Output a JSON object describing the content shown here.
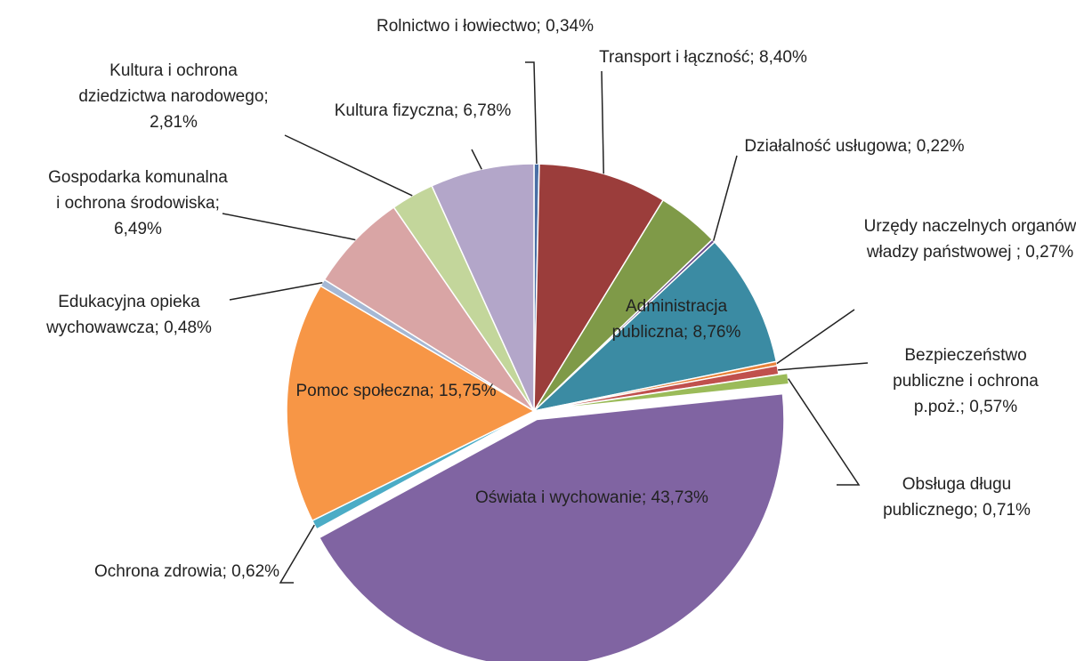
{
  "chart_data": {
    "type": "pie",
    "categories": [
      "Rolnictwo i łowiectwo;",
      "Transport i łączność;",
      null,
      "Działalność usługowa;",
      "Administracja publiczna;",
      "Urzędy naczelnych organów władzy państwowej ;",
      "Bezpieczeństwo publiczne i ochrona p.poż.;",
      "Obsługa długu publicznego;",
      "Oświata i wychowanie;",
      "Ochrona zdrowia;",
      "Pomoc społeczna;",
      "Edukacyjna opieka wychowawcza;",
      "Gospodarka komunalna i ochrona środowiska;",
      "Kultura i ochrona dziedzictwa narodowego;",
      "Kultura fizyczna;"
    ],
    "values": [
      0.34,
      8.4,
      4.07,
      0.22,
      8.76,
      0.27,
      0.57,
      0.71,
      43.73,
      0.62,
      15.75,
      0.48,
      6.49,
      2.81,
      6.78
    ],
    "value_labels": [
      "0,34%",
      "8,40%",
      null,
      "0,22%",
      "8,76%",
      "0,27%",
      "0,57%",
      "0,71%",
      "43,73%",
      "0,62%",
      "15,75%",
      "0,48%",
      "6,49%",
      "2,81%",
      "6,78%"
    ],
    "colors": [
      "#4a6fa5",
      "#9b3d3b",
      "#7f9a48",
      "#6a4f8e",
      "#3b8ba3",
      "#e8823a",
      "#c0504d",
      "#9bbb59",
      "#8064a2",
      "#4bacc6",
      "#f79646",
      "#a5b8d4",
      "#d9a5a5",
      "#c3d69b",
      "#b3a6c9"
    ]
  }
}
